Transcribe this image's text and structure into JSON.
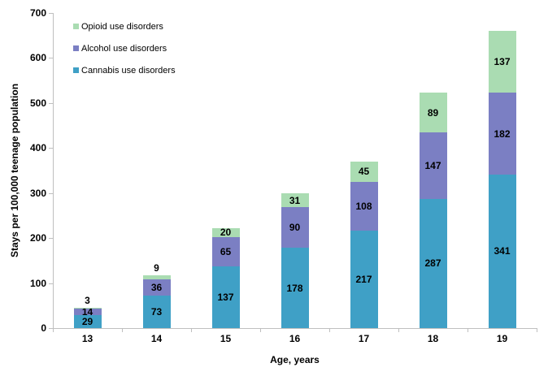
{
  "chart_data": {
    "type": "bar",
    "stacked": true,
    "title": "",
    "xlabel": "Age, years",
    "ylabel": "Stays per 100,000 teenage population",
    "categories": [
      "13",
      "14",
      "15",
      "16",
      "17",
      "18",
      "19"
    ],
    "series": [
      {
        "name": "Cannabis use disorders",
        "color": "#3FA0C6",
        "values": [
          29,
          73,
          137,
          178,
          217,
          287,
          341
        ]
      },
      {
        "name": "Alcohol use disorders",
        "color": "#7B7FC3",
        "values": [
          14,
          36,
          65,
          90,
          108,
          147,
          182
        ]
      },
      {
        "name": "Opioid use disorders",
        "color": "#AADCB2",
        "values": [
          3,
          9,
          20,
          31,
          45,
          89,
          137
        ]
      }
    ],
    "totals": [
      46,
      118,
      222,
      299,
      370,
      523,
      660
    ],
    "ylim": [
      0,
      700
    ],
    "ytick_step": 100,
    "ytick_labels": [
      "0",
      "100",
      "200",
      "300",
      "400",
      "500",
      "600",
      "700"
    ],
    "grid": false,
    "legend_position": "top-left",
    "legend_order": [
      "Opioid use disorders",
      "Alcohol use disorders",
      "Cannabis use disorders"
    ],
    "axis_color": "#BFBFBF",
    "label_color": "#000000"
  }
}
